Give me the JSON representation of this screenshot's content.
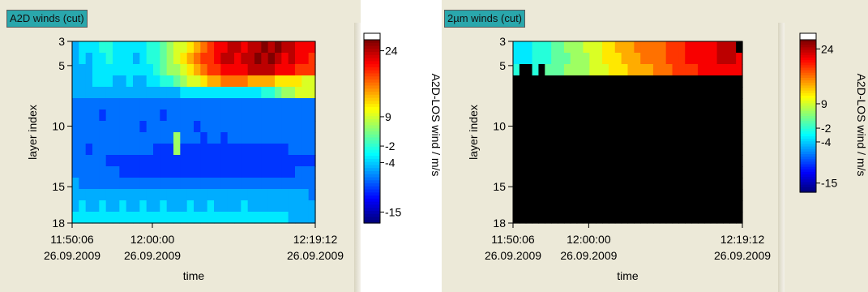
{
  "colors": {
    "panel": "#ece9d8",
    "tag": "#2aa7ac",
    "masked": "#000000"
  },
  "chart_data": [
    {
      "type": "heatmap",
      "title": "A2D winds (cut)",
      "xlabel": "time",
      "ylabel": "layer index",
      "colorbar_label": "A2D-LOS wind / m/s",
      "x_ticks": [
        {
          "line1": "11:50:06",
          "line2": "26.09.2009"
        },
        {
          "line1": "12:00:00",
          "line2": "26.09.2009"
        },
        {
          "line1": "12:19:12",
          "line2": "26.09.2009"
        }
      ],
      "y_ticks": [
        "3",
        "5",
        "10",
        "15",
        "18"
      ],
      "colorbar_ticks": [
        "24",
        "9",
        "-2",
        "-4",
        "-15"
      ],
      "colorbar_range": [
        -15,
        24
      ],
      "layers": [
        3,
        18
      ],
      "columns": 36,
      "grid": [
        [
          5,
          6,
          6,
          6,
          7,
          7,
          6,
          6,
          6,
          6,
          6,
          7,
          7,
          8,
          9,
          10,
          10,
          11,
          12,
          13,
          14,
          15,
          15,
          16,
          16,
          15,
          16,
          16,
          17,
          16,
          17,
          16,
          16,
          15,
          15,
          15
        ],
        [
          5,
          6,
          5,
          6,
          6,
          7,
          6,
          6,
          6,
          5,
          6,
          7,
          7,
          8,
          9,
          10,
          11,
          12,
          13,
          14,
          14,
          15,
          16,
          16,
          15,
          16,
          16,
          17,
          16,
          17,
          16,
          15,
          16,
          15,
          15,
          14
        ],
        [
          5,
          5,
          5,
          6,
          6,
          6,
          6,
          6,
          6,
          6,
          6,
          6,
          7,
          8,
          9,
          9,
          10,
          11,
          12,
          13,
          14,
          14,
          15,
          15,
          15,
          15,
          16,
          16,
          16,
          16,
          15,
          15,
          15,
          14,
          14,
          14
        ],
        [
          5,
          5,
          5,
          6,
          6,
          6,
          5,
          5,
          6,
          5,
          5,
          6,
          6,
          7,
          7,
          8,
          9,
          10,
          10,
          11,
          12,
          12,
          13,
          13,
          13,
          13,
          12,
          12,
          12,
          12,
          11,
          11,
          11,
          11,
          10,
          10
        ],
        [
          5,
          5,
          5,
          5,
          5,
          5,
          5,
          5,
          5,
          5,
          5,
          5,
          5,
          5,
          5,
          5,
          6,
          6,
          6,
          6,
          6,
          6,
          6,
          6,
          6,
          6,
          6,
          6,
          7,
          7,
          8,
          9,
          9,
          10,
          10,
          10
        ],
        [
          4,
          4,
          4,
          4,
          4,
          4,
          4,
          4,
          4,
          4,
          4,
          4,
          4,
          4,
          4,
          4,
          4,
          4,
          4,
          4,
          4,
          4,
          4,
          4,
          4,
          4,
          4,
          4,
          4,
          4,
          4,
          4,
          4,
          4,
          4,
          4
        ],
        [
          4,
          4,
          4,
          4,
          3,
          4,
          4,
          4,
          4,
          4,
          4,
          4,
          4,
          3,
          4,
          4,
          4,
          4,
          4,
          4,
          4,
          4,
          4,
          4,
          4,
          4,
          4,
          4,
          4,
          4,
          4,
          4,
          4,
          4,
          4,
          4
        ],
        [
          4,
          4,
          4,
          4,
          4,
          4,
          4,
          4,
          4,
          4,
          3,
          4,
          4,
          4,
          4,
          4,
          4,
          4,
          3,
          4,
          4,
          4,
          4,
          4,
          4,
          4,
          4,
          4,
          4,
          4,
          4,
          4,
          4,
          4,
          4,
          4
        ],
        [
          4,
          4,
          4,
          4,
          4,
          4,
          4,
          4,
          4,
          4,
          4,
          4,
          4,
          4,
          4,
          9,
          4,
          4,
          4,
          3,
          4,
          4,
          3,
          4,
          4,
          4,
          4,
          4,
          4,
          4,
          4,
          4,
          4,
          4,
          4,
          4
        ],
        [
          4,
          4,
          3,
          4,
          4,
          4,
          4,
          4,
          4,
          4,
          4,
          4,
          3,
          3,
          3,
          9,
          3,
          3,
          3,
          3,
          3,
          3,
          3,
          3,
          3,
          3,
          3,
          3,
          3,
          3,
          3,
          3,
          4,
          4,
          4,
          4
        ],
        [
          4,
          4,
          4,
          4,
          4,
          3,
          3,
          3,
          3,
          3,
          3,
          3,
          3,
          3,
          3,
          3,
          3,
          3,
          3,
          3,
          3,
          3,
          3,
          3,
          3,
          3,
          3,
          3,
          3,
          3,
          3,
          3,
          3,
          3,
          3,
          3
        ],
        [
          4,
          4,
          4,
          4,
          4,
          4,
          4,
          3,
          3,
          3,
          3,
          3,
          3,
          3,
          3,
          3,
          3,
          3,
          3,
          3,
          3,
          3,
          3,
          3,
          3,
          3,
          3,
          3,
          3,
          3,
          3,
          3,
          3,
          4,
          4,
          4
        ],
        [
          5,
          4,
          4,
          4,
          4,
          4,
          4,
          4,
          4,
          4,
          4,
          4,
          4,
          4,
          4,
          4,
          4,
          4,
          4,
          4,
          4,
          4,
          4,
          4,
          4,
          4,
          4,
          4,
          4,
          4,
          4,
          4,
          4,
          4,
          4,
          4
        ],
        [
          5,
          5,
          5,
          5,
          5,
          5,
          5,
          5,
          5,
          5,
          5,
          5,
          5,
          5,
          5,
          5,
          5,
          5,
          5,
          5,
          5,
          5,
          5,
          5,
          5,
          5,
          5,
          5,
          5,
          5,
          5,
          5,
          5,
          5,
          5,
          4
        ],
        [
          5,
          6,
          5,
          5,
          6,
          5,
          5,
          6,
          5,
          5,
          6,
          5,
          5,
          6,
          5,
          5,
          5,
          6,
          5,
          5,
          6,
          5,
          5,
          5,
          5,
          6,
          5,
          5,
          5,
          5,
          5,
          5,
          5,
          5,
          5,
          5
        ],
        [
          6,
          6,
          6,
          6,
          6,
          6,
          6,
          6,
          6,
          6,
          6,
          6,
          6,
          6,
          6,
          6,
          6,
          6,
          6,
          6,
          6,
          6,
          6,
          6,
          6,
          6,
          6,
          6,
          6,
          6,
          6,
          6,
          5,
          5,
          5,
          5
        ]
      ]
    },
    {
      "type": "heatmap",
      "title": "2µm winds (cut)",
      "xlabel": "time",
      "ylabel": "layer index",
      "colorbar_label": "A2D-LOS wind / m/s",
      "x_ticks": [
        {
          "line1": "11:50:06",
          "line2": "26.09.2009"
        },
        {
          "line1": "12:00:00",
          "line2": "26.09.2009"
        },
        {
          "line1": "12:19:12",
          "line2": "26.09.2009"
        }
      ],
      "y_ticks": [
        "3",
        "5",
        "10",
        "15",
        "18"
      ],
      "colorbar_ticks": [
        "24",
        "9",
        "-2",
        "-4",
        "-15"
      ],
      "colorbar_range": [
        -15,
        24
      ],
      "layers": [
        3,
        18
      ],
      "columns": 36,
      "grid": [
        [
          6,
          6,
          6,
          7,
          7,
          7,
          8,
          8,
          9,
          9,
          9,
          10,
          10,
          10,
          11,
          11,
          12,
          12,
          12,
          13,
          13,
          13,
          13,
          13,
          14,
          14,
          14,
          15,
          15,
          15,
          15,
          15,
          16,
          16,
          16,
          -1
        ],
        [
          6,
          6,
          6,
          7,
          7,
          7,
          8,
          8,
          8,
          9,
          9,
          9,
          10,
          10,
          11,
          11,
          11,
          12,
          12,
          12,
          13,
          13,
          13,
          13,
          14,
          14,
          14,
          15,
          15,
          15,
          15,
          15,
          16,
          16,
          16,
          15
        ],
        [
          7,
          -1,
          -1,
          7,
          -1,
          8,
          8,
          8,
          9,
          9,
          9,
          9,
          10,
          10,
          10,
          11,
          11,
          11,
          12,
          12,
          12,
          12,
          13,
          13,
          13,
          14,
          14,
          14,
          14,
          15,
          15,
          15,
          15,
          15,
          15,
          15
        ],
        [
          -1,
          -1,
          -1,
          -1,
          -1,
          -1,
          -1,
          -1,
          -1,
          -1,
          -1,
          -1,
          -1,
          -1,
          -1,
          -1,
          -1,
          -1,
          -1,
          -1,
          -1,
          -1,
          -1,
          -1,
          -1,
          -1,
          -1,
          -1,
          -1,
          -1,
          -1,
          -1,
          -1,
          -1,
          -1,
          -1
        ],
        [
          -1,
          -1,
          -1,
          -1,
          -1,
          -1,
          -1,
          -1,
          -1,
          -1,
          -1,
          -1,
          -1,
          -1,
          -1,
          -1,
          -1,
          -1,
          -1,
          -1,
          -1,
          -1,
          -1,
          -1,
          -1,
          -1,
          -1,
          -1,
          -1,
          -1,
          -1,
          -1,
          -1,
          -1,
          -1,
          -1
        ],
        [
          -1,
          -1,
          -1,
          -1,
          -1,
          -1,
          -1,
          -1,
          -1,
          -1,
          -1,
          -1,
          -1,
          -1,
          -1,
          -1,
          -1,
          -1,
          -1,
          -1,
          -1,
          -1,
          -1,
          -1,
          -1,
          -1,
          -1,
          -1,
          -1,
          -1,
          -1,
          -1,
          -1,
          -1,
          -1,
          -1
        ],
        [
          -1,
          -1,
          -1,
          -1,
          -1,
          -1,
          -1,
          -1,
          -1,
          -1,
          -1,
          -1,
          -1,
          -1,
          -1,
          -1,
          -1,
          -1,
          -1,
          -1,
          -1,
          -1,
          -1,
          -1,
          -1,
          -1,
          -1,
          -1,
          -1,
          -1,
          -1,
          -1,
          -1,
          -1,
          -1,
          -1
        ],
        [
          -1,
          -1,
          -1,
          -1,
          -1,
          -1,
          -1,
          -1,
          -1,
          -1,
          -1,
          -1,
          -1,
          -1,
          -1,
          -1,
          -1,
          -1,
          -1,
          -1,
          -1,
          -1,
          -1,
          -1,
          -1,
          -1,
          -1,
          -1,
          -1,
          -1,
          -1,
          -1,
          -1,
          -1,
          -1,
          -1
        ],
        [
          -1,
          -1,
          -1,
          -1,
          -1,
          -1,
          -1,
          -1,
          -1,
          -1,
          -1,
          -1,
          -1,
          -1,
          -1,
          -1,
          -1,
          -1,
          -1,
          -1,
          -1,
          -1,
          -1,
          -1,
          -1,
          -1,
          -1,
          -1,
          -1,
          -1,
          -1,
          -1,
          -1,
          -1,
          -1,
          -1
        ],
        [
          -1,
          -1,
          -1,
          -1,
          -1,
          -1,
          -1,
          -1,
          -1,
          -1,
          -1,
          -1,
          -1,
          -1,
          -1,
          -1,
          -1,
          -1,
          -1,
          -1,
          -1,
          -1,
          -1,
          -1,
          -1,
          -1,
          -1,
          -1,
          -1,
          -1,
          -1,
          -1,
          -1,
          -1,
          -1,
          -1
        ],
        [
          -1,
          -1,
          -1,
          -1,
          -1,
          -1,
          -1,
          -1,
          -1,
          -1,
          -1,
          -1,
          -1,
          -1,
          -1,
          -1,
          -1,
          -1,
          -1,
          -1,
          -1,
          -1,
          -1,
          -1,
          -1,
          -1,
          -1,
          -1,
          -1,
          -1,
          -1,
          -1,
          -1,
          -1,
          -1,
          -1
        ],
        [
          -1,
          -1,
          -1,
          -1,
          -1,
          -1,
          -1,
          -1,
          -1,
          -1,
          -1,
          -1,
          -1,
          -1,
          -1,
          -1,
          -1,
          -1,
          -1,
          -1,
          -1,
          -1,
          -1,
          -1,
          -1,
          -1,
          -1,
          -1,
          -1,
          -1,
          -1,
          -1,
          -1,
          -1,
          -1,
          -1
        ],
        [
          -1,
          -1,
          -1,
          -1,
          -1,
          -1,
          -1,
          -1,
          -1,
          -1,
          -1,
          -1,
          -1,
          -1,
          -1,
          -1,
          -1,
          -1,
          -1,
          -1,
          -1,
          -1,
          -1,
          -1,
          -1,
          -1,
          -1,
          -1,
          -1,
          -1,
          -1,
          -1,
          -1,
          -1,
          -1,
          -1
        ],
        [
          -1,
          -1,
          -1,
          -1,
          -1,
          -1,
          -1,
          -1,
          -1,
          -1,
          -1,
          -1,
          -1,
          -1,
          -1,
          -1,
          -1,
          -1,
          -1,
          -1,
          -1,
          -1,
          -1,
          -1,
          -1,
          -1,
          -1,
          -1,
          -1,
          -1,
          -1,
          -1,
          -1,
          -1,
          -1,
          -1
        ],
        [
          -1,
          -1,
          -1,
          -1,
          -1,
          -1,
          -1,
          -1,
          -1,
          -1,
          -1,
          -1,
          -1,
          -1,
          -1,
          -1,
          -1,
          -1,
          -1,
          -1,
          -1,
          -1,
          -1,
          -1,
          -1,
          -1,
          -1,
          -1,
          -1,
          -1,
          -1,
          -1,
          -1,
          -1,
          -1,
          -1
        ],
        [
          -1,
          -1,
          -1,
          -1,
          -1,
          -1,
          -1,
          -1,
          -1,
          -1,
          -1,
          -1,
          -1,
          -1,
          -1,
          -1,
          -1,
          -1,
          -1,
          -1,
          -1,
          -1,
          -1,
          -1,
          -1,
          -1,
          -1,
          -1,
          -1,
          -1,
          -1,
          -1,
          -1,
          -1,
          -1,
          -1
        ]
      ]
    }
  ]
}
